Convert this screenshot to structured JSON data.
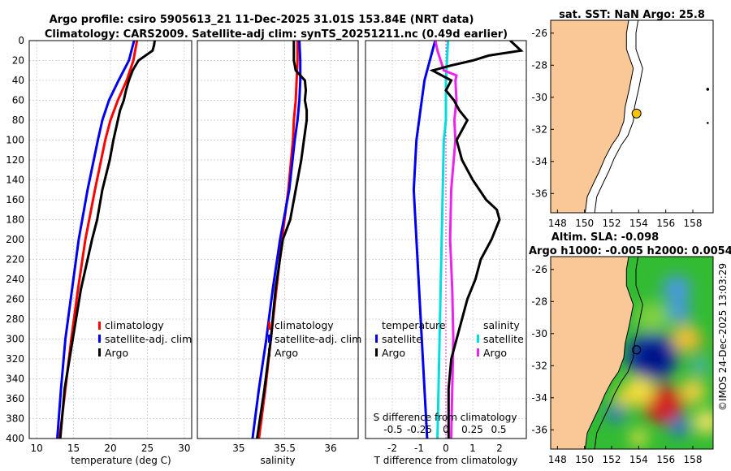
{
  "header": {
    "title_line1": "Argo profile: csiro 5905613_21 11-Dec-2025 31.01S 153.84E (NRT data)",
    "title_line2": "Climatology: CARS2009. Satellite-adj clim: synTS_20251211.nc (0.49d earlier)"
  },
  "credit": "©IMOS 24-Dec-2025 13:03:29",
  "colors": {
    "clim": "#ff0000",
    "sat": "#0000ee",
    "argo": "#000000",
    "sal_sat": "#00dddd",
    "sal_argo": "#ee22ee",
    "land": "#f9c896"
  },
  "chart_data": [
    {
      "id": "temperature",
      "type": "line",
      "xlabel": "temperature (deg C)",
      "ylabel": "",
      "xlim": [
        9,
        31
      ],
      "ylim": [
        0,
        400
      ],
      "xticks": [
        "10",
        "15",
        "20",
        "25",
        "30"
      ],
      "yticks": [
        "0",
        "20",
        "40",
        "60",
        "80",
        "100",
        "120",
        "140",
        "160",
        "180",
        "200",
        "220",
        "240",
        "260",
        "280",
        "300",
        "320",
        "340",
        "360",
        "380",
        "400"
      ],
      "legend": [
        "climatology",
        "satellite-adj. clim",
        "Argo"
      ],
      "series": [
        {
          "name": "climatology",
          "depth": [
            0,
            20,
            40,
            60,
            80,
            100,
            150,
            200,
            250,
            300,
            350,
            400
          ],
          "values": [
            23.6,
            23.1,
            22.2,
            21.0,
            20.0,
            19.3,
            17.9,
            16.6,
            15.6,
            14.7,
            13.9,
            13.1
          ]
        },
        {
          "name": "satellite-adj. clim",
          "depth": [
            0,
            20,
            40,
            60,
            80,
            100,
            150,
            200,
            250,
            300,
            350,
            400
          ],
          "values": [
            23.2,
            22.5,
            21.1,
            19.8,
            18.9,
            18.3,
            16.9,
            15.7,
            14.8,
            13.9,
            13.3,
            12.8
          ]
        },
        {
          "name": "Argo",
          "depth": [
            0,
            5,
            10,
            20,
            30,
            40,
            50,
            60,
            70,
            80,
            100,
            120,
            150,
            180,
            200,
            250,
            300,
            350,
            400
          ],
          "values": [
            26.0,
            25.9,
            25.7,
            23.8,
            23.0,
            22.5,
            22.1,
            21.8,
            21.3,
            21.0,
            20.4,
            19.9,
            18.9,
            18.2,
            17.5,
            16.0,
            14.9,
            13.8,
            13.2
          ]
        }
      ]
    },
    {
      "id": "salinity",
      "type": "line",
      "xlabel": "salinity",
      "ylabel": "",
      "xlim": [
        34.55,
        36.3
      ],
      "ylim": [
        0,
        400
      ],
      "xticks": [
        "35",
        "35.5",
        "36"
      ],
      "legend": [
        "climatology",
        "satellite-adj. clim",
        "Argo"
      ],
      "series": [
        {
          "name": "climatology",
          "depth": [
            0,
            20,
            40,
            60,
            80,
            100,
            150,
            200,
            250,
            300,
            350,
            400
          ],
          "values": [
            35.64,
            35.64,
            35.63,
            35.62,
            35.6,
            35.59,
            35.54,
            35.47,
            35.41,
            35.35,
            35.29,
            35.22
          ]
        },
        {
          "name": "satellite-adj. clim",
          "depth": [
            0,
            20,
            40,
            60,
            80,
            100,
            150,
            200,
            250,
            300,
            350,
            400
          ],
          "values": [
            35.66,
            35.67,
            35.67,
            35.66,
            35.64,
            35.61,
            35.55,
            35.45,
            35.37,
            35.3,
            35.22,
            35.15
          ]
        },
        {
          "name": "Argo",
          "depth": [
            0,
            10,
            20,
            30,
            40,
            50,
            60,
            70,
            80,
            100,
            120,
            150,
            180,
            200,
            250,
            300,
            350,
            400
          ],
          "values": [
            35.6,
            35.6,
            35.6,
            35.62,
            35.72,
            35.73,
            35.72,
            35.74,
            35.74,
            35.71,
            35.68,
            35.62,
            35.56,
            35.48,
            35.4,
            35.35,
            35.28,
            35.2
          ]
        }
      ]
    },
    {
      "id": "differences",
      "type": "line",
      "xlabel": "T difference from climatology",
      "ylabel": "",
      "xlim": [
        -3,
        3
      ],
      "xticks": [
        "-2",
        "-1",
        "0",
        "1",
        "2"
      ],
      "sub_xlabel": "S difference from climatology",
      "sub_xticks": [
        "-0.5",
        "-0.25",
        "0",
        "0.25",
        "0.5"
      ],
      "legend_temperature": [
        "temperature",
        "satellite",
        "Argo"
      ],
      "legend_salinity": [
        "salinity",
        "satellite",
        "Argo"
      ],
      "series": [
        {
          "name": "temperature satellite",
          "depth": [
            0,
            10,
            20,
            40,
            60,
            80,
            100,
            150,
            200,
            250,
            300,
            350,
            400
          ],
          "values": [
            -0.4,
            -0.5,
            -0.6,
            -0.8,
            -0.9,
            -1.0,
            -1.1,
            -1.2,
            -1.1,
            -1.0,
            -0.9,
            -0.8,
            -0.7
          ]
        },
        {
          "name": "temperature Argo",
          "depth": [
            0,
            5,
            10,
            15,
            20,
            25,
            30,
            40,
            50,
            60,
            70,
            80,
            90,
            100,
            120,
            140,
            160,
            170,
            180,
            200,
            220,
            240,
            260,
            280,
            300,
            320,
            350,
            380,
            400
          ],
          "values": [
            2.4,
            2.6,
            2.8,
            1.6,
            1.0,
            0.2,
            -0.5,
            0.2,
            0.0,
            0.3,
            0.5,
            0.8,
            0.6,
            0.4,
            0.6,
            1.0,
            1.5,
            1.9,
            2.0,
            1.7,
            1.3,
            1.1,
            0.8,
            0.6,
            0.4,
            0.2,
            0.1,
            0.1,
            0.1
          ]
        },
        {
          "name": "salinity satellite",
          "depth": [
            0,
            20,
            40,
            80,
            100,
            150,
            200,
            250,
            300,
            350,
            400
          ],
          "values": [
            0.02,
            0.01,
            0.0,
            0.0,
            -0.02,
            -0.03,
            -0.04,
            -0.05,
            -0.06,
            -0.07,
            -0.08
          ]
        },
        {
          "name": "salinity Argo",
          "depth": [
            0,
            10,
            20,
            30,
            35,
            40,
            60,
            80,
            100,
            150,
            200,
            250,
            300,
            350,
            400
          ],
          "values": [
            -0.1,
            -0.08,
            -0.05,
            -0.02,
            0.1,
            0.09,
            0.1,
            0.08,
            0.09,
            0.05,
            0.04,
            0.06,
            0.07,
            0.06,
            0.05
          ]
        }
      ]
    },
    {
      "id": "sst_map",
      "type": "scatter",
      "title": "sat. SST: NaN Argo: 25.8",
      "xticks": [
        "148",
        "150",
        "152",
        "154",
        "156",
        "158"
      ],
      "yticks": [
        "-26",
        "-28",
        "-30",
        "-32",
        "-34",
        "-36"
      ],
      "xlim": [
        147.5,
        159.5
      ],
      "ylim": [
        -37.2,
        -25.2
      ],
      "points": [
        {
          "name": "Argo float",
          "lon": 153.84,
          "lat": -31.01
        }
      ]
    },
    {
      "id": "sla_map",
      "type": "heatmap",
      "title_line1": "Altim. SLA: -0.098",
      "title_line2": "Argo h1000: -0.005 h2000: 0.0054",
      "xticks": [
        "148",
        "150",
        "152",
        "154",
        "156",
        "158"
      ],
      "yticks": [
        "-26",
        "-28",
        "-30",
        "-32",
        "-34",
        "-36"
      ],
      "xlim": [
        147.5,
        159.5
      ],
      "ylim": [
        -37.2,
        -25.2
      ],
      "points": [
        {
          "name": "Argo float",
          "lon": 153.84,
          "lat": -31.01
        }
      ]
    }
  ]
}
